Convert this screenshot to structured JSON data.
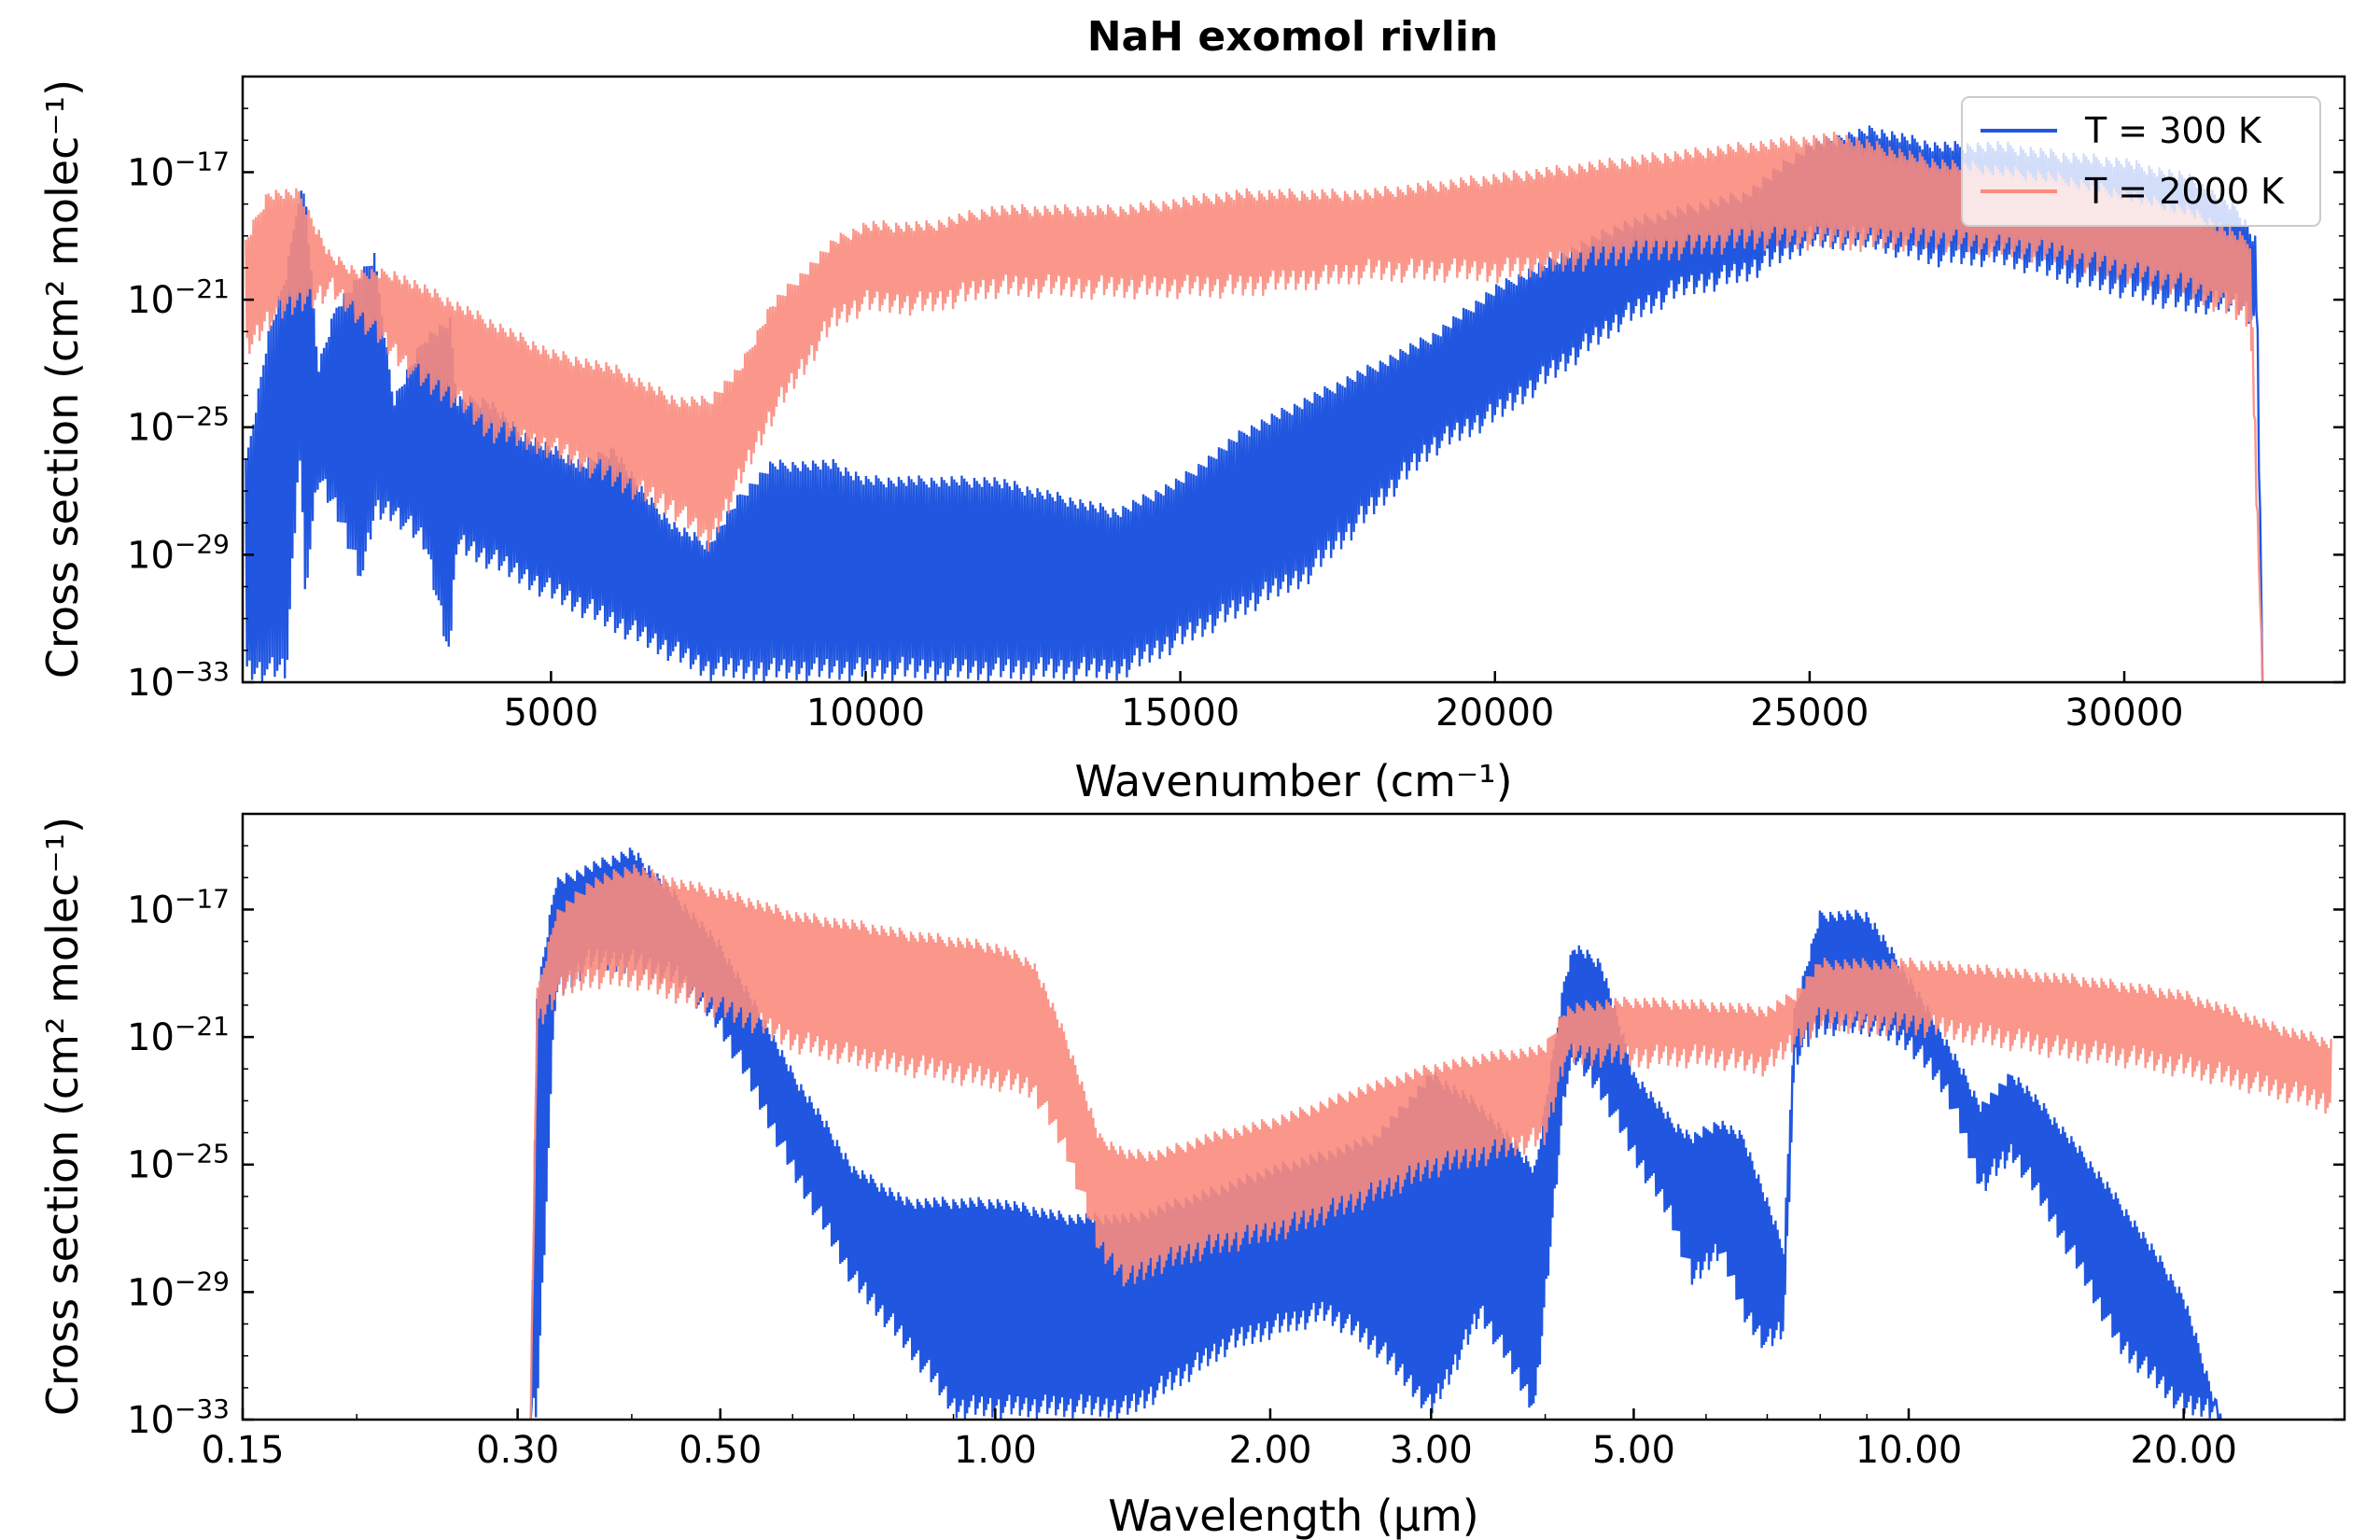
{
  "title": "NaH exomol rivlin",
  "legend": [
    {
      "label": "T = 300 K",
      "color": "#2056e0"
    },
    {
      "label": "T = 2000 K",
      "color": "#f98b7d"
    }
  ],
  "chart_data": [
    {
      "type": "line",
      "title": "NaH exomol rivlin",
      "xlabel": "Wavenumber (cm⁻¹)",
      "ylabel": "Cross section (cm² molec⁻¹)",
      "xscale": "linear",
      "yscale": "log",
      "xlim": [
        100,
        33500
      ],
      "ylim": [
        1e-33,
        1e-14
      ],
      "xticks": [
        5000,
        10000,
        15000,
        20000,
        25000,
        30000
      ],
      "xtick_labels": [
        "5000",
        "10000",
        "15000",
        "20000",
        "25000",
        "30000"
      ],
      "yticks": [
        1e-33,
        1e-29,
        1e-25,
        1e-21,
        1e-17
      ],
      "legend_position": "top-right",
      "series": [
        {
          "name": "T = 300 K",
          "color": "#2056e0",
          "band": "peak-and-trough envelope of a densely oscillating line spectrum",
          "x": [
            150,
            500,
            800,
            1000,
            1100,
            1300,
            1600,
            2000,
            2200,
            2500,
            3000,
            3400,
            3500,
            4000,
            4500,
            5000,
            5500,
            6000,
            6500,
            7000,
            7500,
            8000,
            8500,
            9000,
            9500,
            10000,
            11000,
            12000,
            13000,
            14000,
            15000,
            16000,
            17000,
            18000,
            19000,
            20000,
            21000,
            22000,
            23000,
            24000,
            25000,
            26000,
            27000,
            28000,
            29000,
            30000,
            31000,
            31800,
            32100,
            32200
          ],
          "upper": [
            -26,
            -22,
            -20,
            -17.5,
            -17.5,
            -23,
            -21,
            -20,
            -19.5,
            -24,
            -22,
            -21.5,
            -24,
            -24,
            -25,
            -25.5,
            -26,
            -25.5,
            -27,
            -28,
            -28.5,
            -27,
            -26,
            -26,
            -26,
            -26.5,
            -26.5,
            -26.5,
            -27,
            -27.5,
            -26.5,
            -25,
            -24,
            -23,
            -22,
            -20.5,
            -19.5,
            -18.5,
            -18,
            -17.5,
            -16,
            -15.5,
            -16,
            -16,
            -16.3,
            -16.5,
            -17,
            -18,
            -19,
            -33
          ],
          "lower": [
            -33,
            -33,
            -33,
            -26,
            -30.5,
            -27,
            -28,
            -30,
            -28,
            -28,
            -29,
            -32.5,
            -29,
            -29.5,
            -30,
            -30.5,
            -31,
            -31.5,
            -32,
            -32.5,
            -33,
            -33,
            -33,
            -33,
            -33,
            -33,
            -33,
            -33,
            -33,
            -33,
            -32,
            -31,
            -30,
            -28,
            -26,
            -25,
            -23.5,
            -22,
            -21,
            -20.5,
            -19.5,
            -19.5,
            -20,
            -20,
            -20.5,
            -21,
            -21.5,
            -21.5,
            -22,
            -33
          ]
        },
        {
          "name": "T = 2000 K",
          "color": "#f98b7d",
          "band": "peak-and-trough envelope of a densely oscillating line spectrum",
          "x": [
            150,
            500,
            1000,
            1500,
            2000,
            2500,
            3000,
            3500,
            4000,
            5000,
            6000,
            7000,
            7500,
            8000,
            8500,
            9000,
            9500,
            10000,
            11000,
            12000,
            14000,
            16000,
            18000,
            20000,
            22000,
            24000,
            25500,
            27000,
            29000,
            31000,
            32000,
            32200
          ],
          "upper": [
            -19,
            -17.5,
            -17.5,
            -19.5,
            -20,
            -20,
            -20.5,
            -21,
            -21.5,
            -22.5,
            -23,
            -24,
            -24,
            -23,
            -21,
            -20,
            -19,
            -18.5,
            -18.5,
            -18,
            -18,
            -17.5,
            -17.5,
            -17,
            -16.5,
            -16,
            -15.7,
            -16.5,
            -17,
            -18,
            -19,
            -33
          ],
          "lower": [
            -23,
            -22,
            -21.5,
            -21,
            -22,
            -23,
            -24,
            -24.5,
            -25.5,
            -26,
            -27,
            -28,
            -29,
            -27,
            -25,
            -23.5,
            -22,
            -21.5,
            -21.5,
            -21,
            -21,
            -21,
            -20.5,
            -20.5,
            -20,
            -19.5,
            -19.5,
            -19.5,
            -20,
            -21,
            -22,
            -33
          ]
        }
      ]
    },
    {
      "type": "line",
      "title": "",
      "xlabel": "Wavelength (µm)",
      "ylabel": "Cross section (cm² molec⁻¹)",
      "xscale": "log",
      "yscale": "log",
      "xlim": [
        0.15,
        30
      ],
      "ylim": [
        1e-33,
        1e-14
      ],
      "xticks": [
        0.15,
        0.3,
        0.5,
        1.0,
        2.0,
        3.0,
        5.0,
        10.0,
        20.0
      ],
      "xtick_labels": [
        "0.15",
        "0.30",
        "0.50",
        "1.00",
        "2.00",
        "3.00",
        "5.00",
        "10.00",
        "20.00"
      ],
      "yticks": [
        1e-33,
        1e-29,
        1e-25,
        1e-21,
        1e-17
      ],
      "series": [
        {
          "name": "T = 300 K",
          "color": "#2056e0",
          "band": "peak-and-trough envelope of a densely oscillating line spectrum",
          "x": [
            0.31,
            0.315,
            0.33,
            0.36,
            0.4,
            0.45,
            0.5,
            0.6,
            0.7,
            0.8,
            0.9,
            1.0,
            1.2,
            1.4,
            1.6,
            1.8,
            2.0,
            2.3,
            2.6,
            3.0,
            3.4,
            3.9,
            4.2,
            4.3,
            4.6,
            5.0,
            5.5,
            5.8,
            6.2,
            6.6,
            7.0,
            7.3,
            7.5,
            8.0,
            9.0,
            10.0,
            11.0,
            12.0,
            13.0,
            15.0,
            17.0,
            20.0,
            22.0
          ],
          "upper": [
            -33,
            -19.5,
            -16,
            -15.5,
            -15,
            -16.5,
            -18,
            -22,
            -25,
            -26,
            -26,
            -26,
            -26.5,
            -26.5,
            -26,
            -25.5,
            -25,
            -24.5,
            -24,
            -22,
            -23,
            -25,
            -19,
            -18,
            -18.5,
            -22,
            -23.5,
            -24,
            -23.5,
            -24,
            -26,
            -27.5,
            -20,
            -17,
            -17,
            -19,
            -21,
            -23,
            -22,
            -24,
            -26,
            -29,
            -33
          ],
          "lower": [
            -33,
            -33,
            -20,
            -19,
            -19,
            -19.5,
            -21,
            -25.5,
            -29,
            -31,
            -33,
            -33,
            -33,
            -33,
            -32,
            -31,
            -30.5,
            -30,
            -31,
            -33,
            -30,
            -33,
            -23,
            -22,
            -23,
            -25,
            -27,
            -29,
            -28,
            -30,
            -31,
            -30.5,
            -22,
            -21,
            -21,
            -21.5,
            -23,
            -26,
            -25,
            -28,
            -31,
            -33,
            -33
          ]
        },
        {
          "name": "T = 2000 K",
          "color": "#f98b7d",
          "band": "peak-and-trough envelope of a densely oscillating line spectrum",
          "x": [
            0.31,
            0.315,
            0.33,
            0.36,
            0.4,
            0.45,
            0.5,
            0.6,
            0.7,
            0.8,
            0.9,
            1.0,
            1.1,
            1.2,
            1.3,
            1.4,
            1.5,
            1.7,
            2.0,
            2.5,
            3.0,
            3.5,
            4.0,
            4.2,
            4.5,
            5.0,
            6.0,
            7.0,
            7.5,
            8.0,
            9.0,
            10.0,
            12.0,
            15.0,
            20.0,
            25.0,
            29.0
          ],
          "upper": [
            -33,
            -19.5,
            -17,
            -16,
            -15.5,
            -16,
            -16.3,
            -17,
            -17.3,
            -17.6,
            -17.8,
            -18,
            -18.5,
            -21,
            -24,
            -24.5,
            -24.5,
            -24,
            -23.5,
            -22.5,
            -21.8,
            -21.4,
            -21.2,
            -20,
            -19.8,
            -19.7,
            -19.8,
            -20,
            -19.5,
            -18.5,
            -18.5,
            -18.5,
            -18.7,
            -19,
            -19.5,
            -20.5,
            -21
          ],
          "lower": [
            -33,
            -21,
            -20,
            -19.5,
            -19.5,
            -20,
            -20.5,
            -21.5,
            -22,
            -22.3,
            -22.5,
            -22.7,
            -23,
            -25,
            -28,
            -29,
            -28.5,
            -28,
            -27.5,
            -26.5,
            -25.5,
            -25,
            -24.5,
            -22,
            -22,
            -22,
            -22,
            -22.3,
            -21.5,
            -20.8,
            -21,
            -21,
            -21.3,
            -21.8,
            -22.3,
            -23,
            -23.5
          ]
        }
      ]
    }
  ]
}
